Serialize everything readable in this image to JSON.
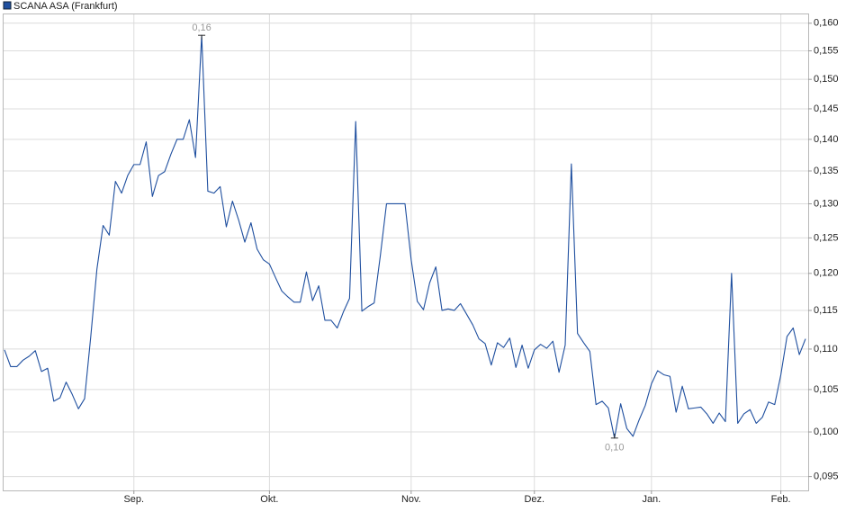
{
  "chart_data": {
    "type": "line",
    "series": [
      {
        "name": "SCANA ASA (Frankfurt)",
        "color": "#1f4f9f",
        "values": [
          0.1099,
          0.1078,
          0.1078,
          0.1086,
          0.1091,
          0.1098,
          0.1072,
          0.1076,
          0.1036,
          0.104,
          0.1059,
          0.1044,
          0.1027,
          0.1039,
          0.1116,
          0.1206,
          0.1268,
          0.1254,
          0.1334,
          0.1316,
          0.1343,
          0.136,
          0.136,
          0.1396,
          0.1311,
          0.1343,
          0.1349,
          0.1376,
          0.14,
          0.14,
          0.1432,
          0.1371,
          0.1578,
          0.1319,
          0.1316,
          0.1326,
          0.1266,
          0.1304,
          0.1276,
          0.1244,
          0.1272,
          0.1234,
          0.1219,
          0.1213,
          0.1194,
          0.1176,
          0.1168,
          0.1161,
          0.1161,
          0.1202,
          0.1163,
          0.1183,
          0.1137,
          0.1137,
          0.1127,
          0.1148,
          0.1166,
          0.1429,
          0.1149,
          0.1155,
          0.116,
          0.1225,
          0.13,
          0.13,
          0.13,
          0.13,
          0.1219,
          0.1162,
          0.1151,
          0.1187,
          0.1209,
          0.115,
          0.1152,
          0.115,
          0.1159,
          0.1145,
          0.1131,
          0.1113,
          0.1107,
          0.108,
          0.1108,
          0.1102,
          0.1114,
          0.1077,
          0.1105,
          0.1076,
          0.1099,
          0.1106,
          0.1101,
          0.111,
          0.1071,
          0.1105,
          0.1361,
          0.112,
          0.1108,
          0.1097,
          0.1032,
          0.1036,
          0.1028,
          0.0993,
          0.1033,
          0.1004,
          0.0995,
          0.1014,
          0.1031,
          0.1057,
          0.1073,
          0.1068,
          0.1066,
          0.1023,
          0.1054,
          0.1027,
          0.1028,
          0.1029,
          0.1021,
          0.101,
          0.1022,
          0.1012,
          0.12,
          0.101,
          0.1021,
          0.1026,
          0.101,
          0.1017,
          0.1035,
          0.1032,
          0.1068,
          0.1116,
          0.1127,
          0.1093,
          0.1113
        ],
        "value_labels": [
          null,
          null,
          null,
          null,
          null,
          null,
          null,
          null,
          null,
          null,
          null,
          null,
          null,
          null,
          null,
          null,
          null,
          null,
          null,
          null,
          null,
          null,
          null,
          null,
          null,
          null,
          null,
          null,
          null,
          null,
          null,
          null,
          "0,16",
          null,
          null,
          null,
          null,
          null,
          null,
          null,
          null,
          null,
          null,
          null,
          null,
          null,
          null,
          null,
          null,
          null,
          null,
          null,
          null,
          null,
          null,
          null,
          null,
          null,
          null,
          null,
          null,
          null,
          null,
          null,
          null,
          null,
          null,
          null,
          null,
          null,
          null,
          null,
          null,
          null,
          null,
          null,
          null,
          null,
          null,
          null,
          null,
          null,
          null,
          null,
          null,
          null,
          null,
          null,
          null,
          null,
          null,
          null,
          null,
          null,
          null,
          null,
          null,
          null,
          null,
          "0,10",
          null,
          null,
          null,
          null,
          null,
          null,
          null,
          null,
          null,
          null,
          null,
          null,
          null,
          null,
          null,
          null,
          null,
          null,
          null,
          null,
          null,
          null,
          null,
          null,
          null,
          null,
          null,
          null,
          null,
          null,
          null
        ]
      }
    ],
    "categories": [
      null,
      null,
      null,
      null,
      null,
      null,
      null,
      null,
      null,
      null,
      null,
      null,
      null,
      null,
      null,
      null,
      null,
      null,
      null,
      null,
      null,
      "Sep.",
      null,
      null,
      null,
      null,
      null,
      null,
      null,
      null,
      null,
      null,
      null,
      null,
      null,
      null,
      null,
      null,
      null,
      null,
      null,
      null,
      null,
      "Okt.",
      null,
      null,
      null,
      null,
      null,
      null,
      null,
      null,
      null,
      null,
      null,
      null,
      null,
      null,
      null,
      null,
      null,
      null,
      null,
      null,
      null,
      null,
      "Nov.",
      null,
      null,
      null,
      null,
      null,
      null,
      null,
      null,
      null,
      null,
      null,
      null,
      null,
      null,
      null,
      null,
      null,
      null,
      null,
      "Dez.",
      null,
      null,
      null,
      null,
      null,
      null,
      null,
      null,
      null,
      null,
      null,
      null,
      null,
      null,
      null,
      null,
      null,
      null,
      "Jan.",
      null,
      null,
      null,
      null,
      null,
      null,
      null,
      null,
      null,
      null,
      null,
      null,
      null,
      null,
      null,
      null,
      null,
      null,
      null,
      null,
      "Feb.",
      null,
      null,
      null,
      null
    ],
    "log_scale": true,
    "ylim": [
      0.0935,
      0.1618
    ],
    "yticks": [
      {
        "value": 0.095,
        "label": "0,095"
      },
      {
        "value": 0.1,
        "label": "0,100"
      },
      {
        "value": 0.105,
        "label": "0,105"
      },
      {
        "value": 0.11,
        "label": "0,110"
      },
      {
        "value": 0.115,
        "label": "0,115"
      },
      {
        "value": 0.12,
        "label": "0,120"
      },
      {
        "value": 0.125,
        "label": "0,125"
      },
      {
        "value": 0.13,
        "label": "0,130"
      },
      {
        "value": 0.135,
        "label": "0,135"
      },
      {
        "value": 0.14,
        "label": "0,140"
      },
      {
        "value": 0.145,
        "label": "0,145"
      },
      {
        "value": 0.15,
        "label": "0,150"
      },
      {
        "value": 0.155,
        "label": "0,155"
      },
      {
        "value": 0.16,
        "label": "0,160"
      }
    ],
    "grid": true
  }
}
